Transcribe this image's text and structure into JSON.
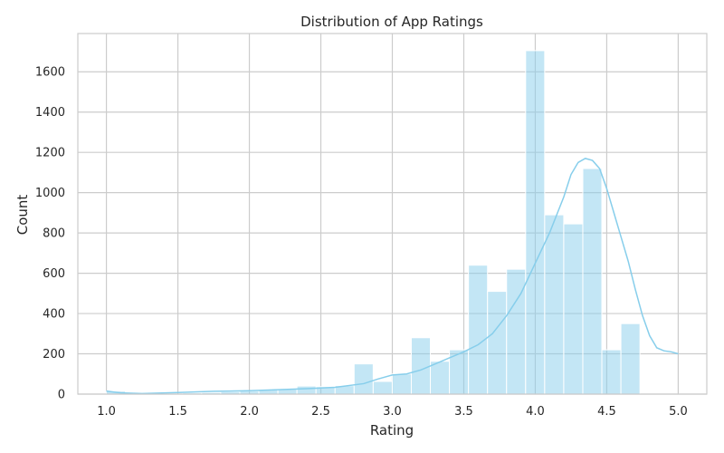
{
  "chart_data": {
    "type": "bar",
    "title": "Distribution of App Ratings",
    "xlabel": "Rating",
    "ylabel": "Count",
    "xlim": [
      0.8,
      5.2
    ],
    "ylim": [
      0,
      1790
    ],
    "x_ticks": [
      "1.0",
      "1.5",
      "2.0",
      "2.5",
      "3.0",
      "3.5",
      "4.0",
      "4.5",
      "5.0"
    ],
    "x_tick_values": [
      1.0,
      1.5,
      2.0,
      2.5,
      3.0,
      3.5,
      4.0,
      4.5,
      5.0
    ],
    "y_ticks": [
      "0",
      "200",
      "400",
      "600",
      "800",
      "1000",
      "1200",
      "1400",
      "1600"
    ],
    "y_tick_values": [
      0,
      200,
      400,
      600,
      800,
      1000,
      1200,
      1400,
      1600
    ],
    "grid": true,
    "bins": {
      "start": 1.0,
      "width": 0.1333,
      "counts": [
        15,
        3,
        0,
        0,
        6,
        8,
        12,
        15,
        21,
        26,
        40,
        37,
        42,
        150,
        63,
        100,
        280,
        163,
        220,
        640,
        510,
        620,
        1705,
        890,
        845,
        1120,
        220,
        350
      ]
    },
    "kde": {
      "x": [
        1.0,
        1.1,
        1.25,
        1.5,
        1.75,
        2.0,
        2.2,
        2.4,
        2.6,
        2.8,
        2.9,
        3.0,
        3.1,
        3.2,
        3.3,
        3.4,
        3.5,
        3.6,
        3.7,
        3.8,
        3.9,
        4.0,
        4.1,
        4.2,
        4.25,
        4.3,
        4.35,
        4.4,
        4.45,
        4.5,
        4.55,
        4.6,
        4.65,
        4.7,
        4.75,
        4.8,
        4.85,
        4.9,
        4.95,
        5.0
      ],
      "y": [
        15,
        6,
        3,
        8,
        14,
        17,
        22,
        27,
        34,
        52,
        75,
        95,
        100,
        120,
        150,
        180,
        210,
        245,
        300,
        390,
        500,
        650,
        800,
        980,
        1090,
        1150,
        1170,
        1160,
        1120,
        1020,
        900,
        780,
        660,
        520,
        390,
        290,
        230,
        215,
        210,
        200
      ]
    },
    "colors": {
      "bar_fill": "#87ceeb",
      "bar_opacity": "0.5",
      "kde_line": "#87ceeb",
      "grid": "#cccccc",
      "frame": "#cccccc",
      "text": "#262626"
    }
  }
}
